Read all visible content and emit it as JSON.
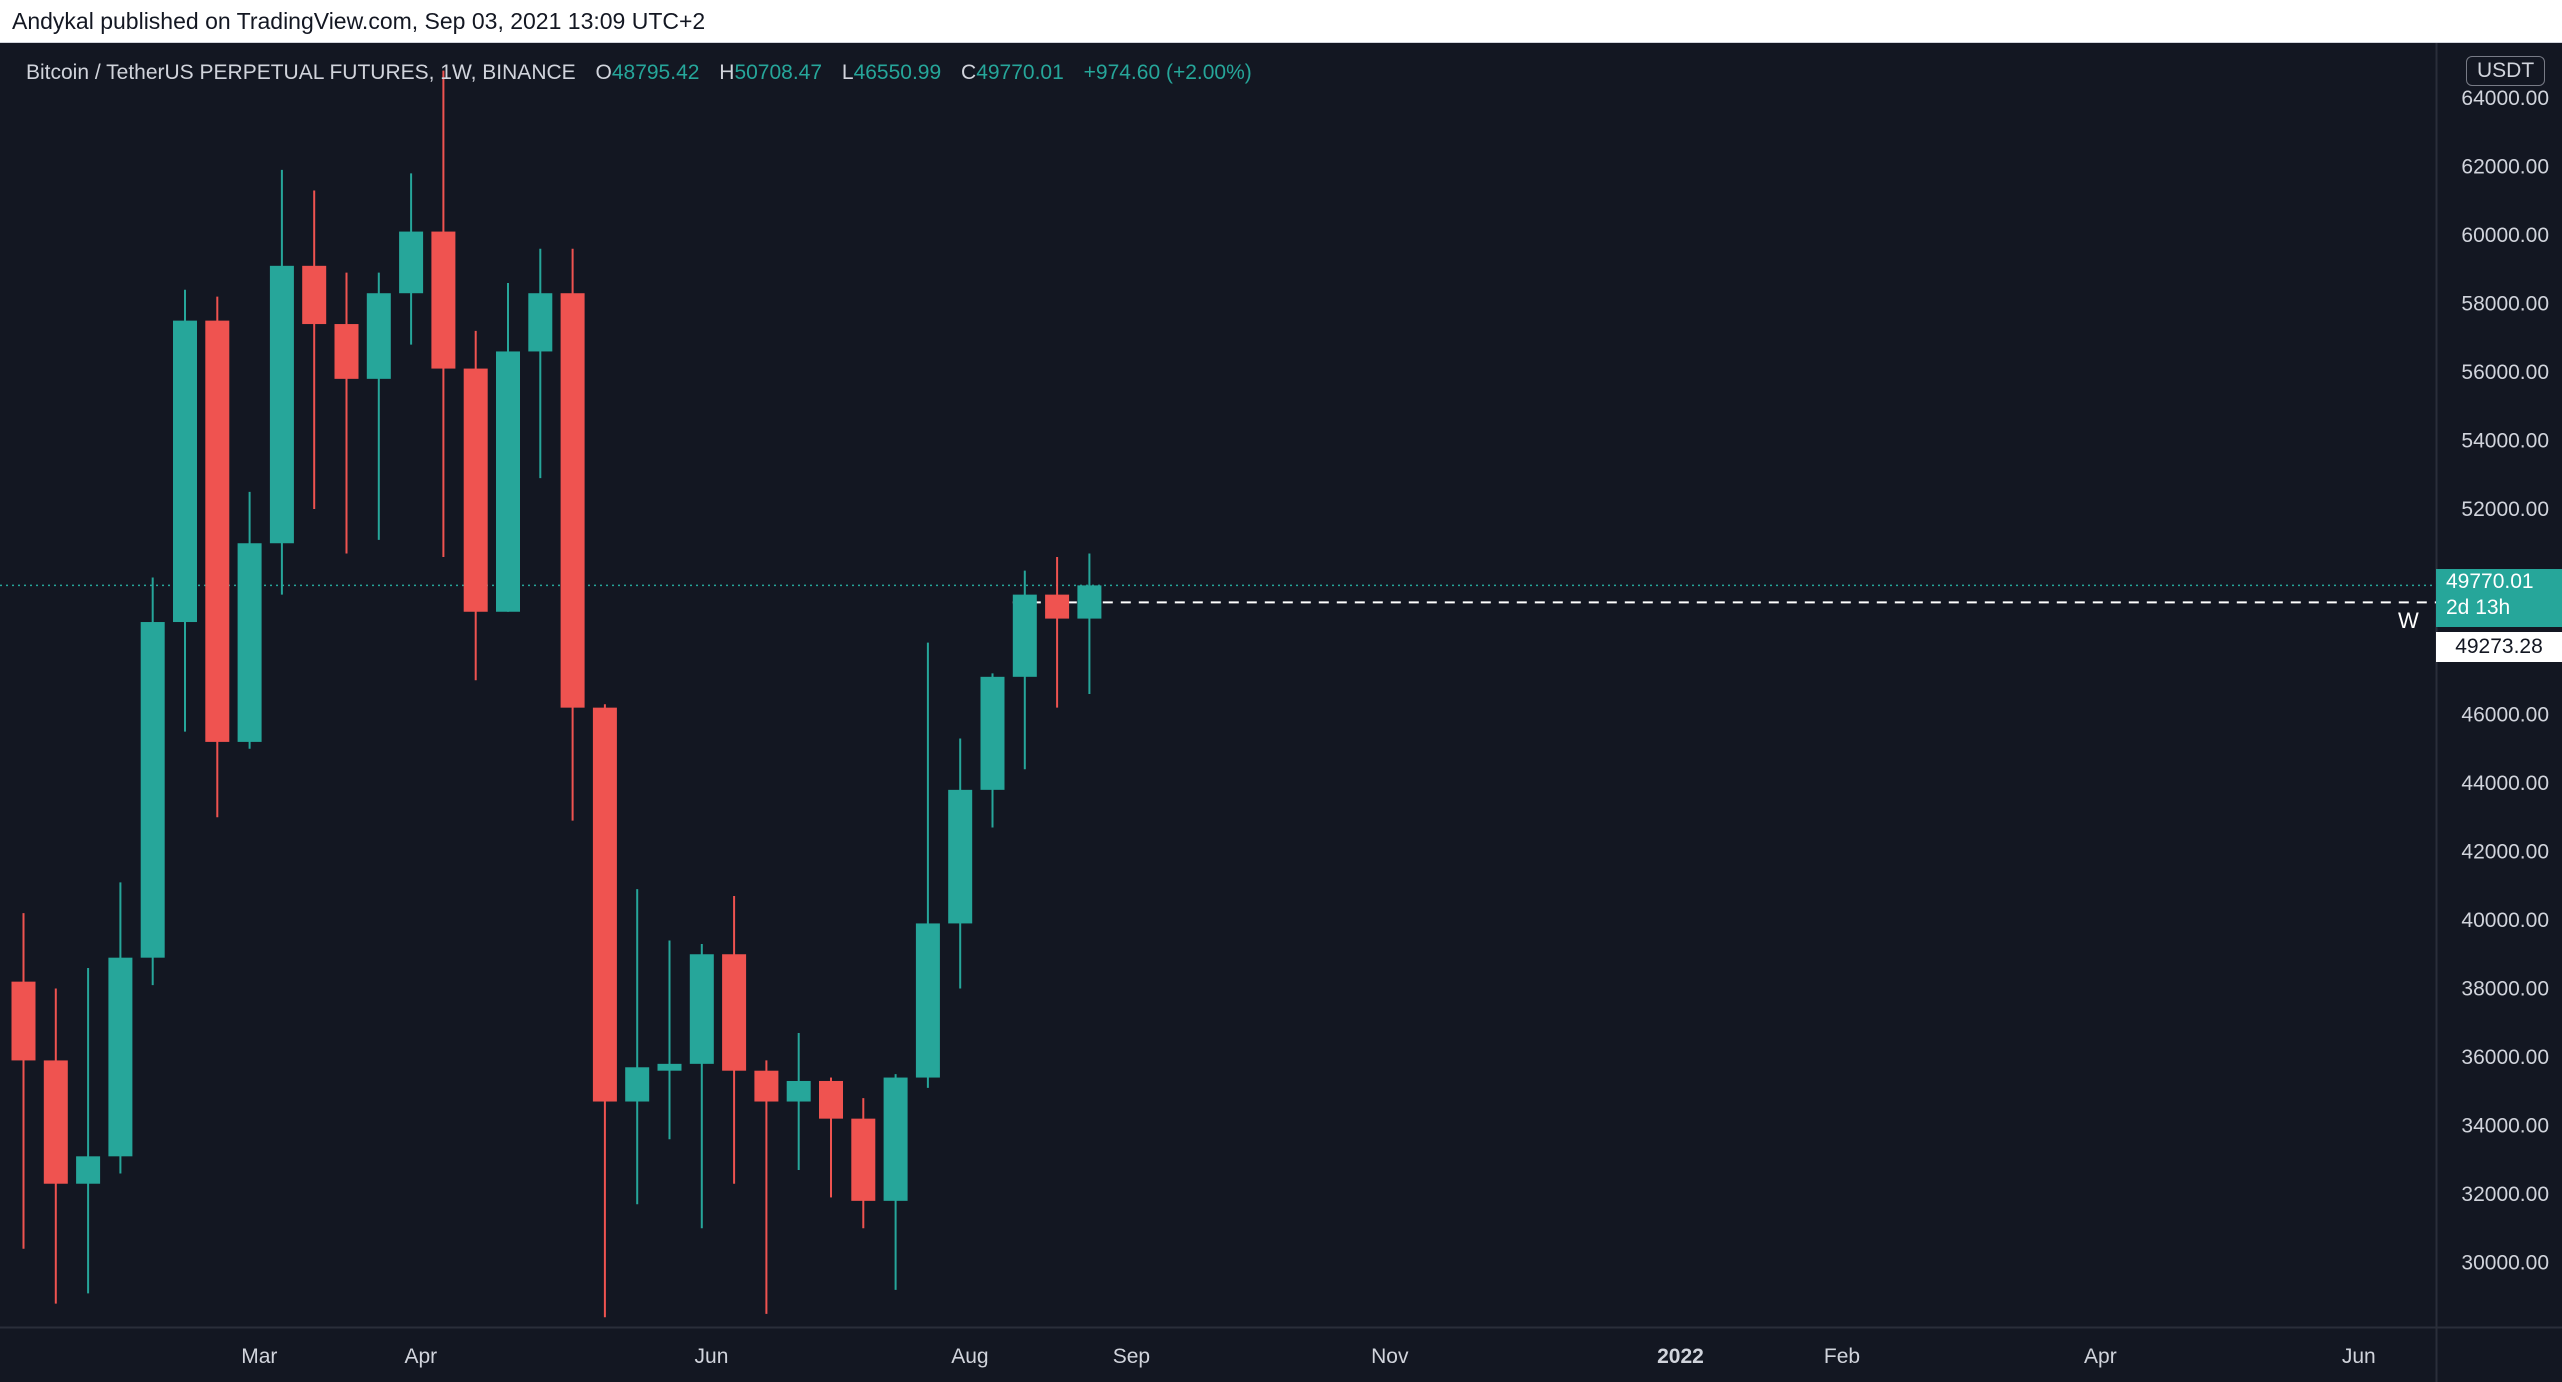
{
  "header": {
    "publish_text": "Andykal published on TradingView.com, Sep 03, 2021 13:09 UTC+2"
  },
  "legend": {
    "symbol": "Bitcoin / TetherUS PERPETUAL FUTURES, 1W, BINANCE",
    "o_label": "O",
    "o_value": "48795.42",
    "h_label": "H",
    "h_value": "50708.47",
    "l_label": "L",
    "l_value": "46550.99",
    "c_label": "C",
    "c_value": "49770.01",
    "change": "+974.60 (+2.00%)"
  },
  "currency": "USDT",
  "last_price": {
    "value": "49770.01",
    "countdown": "2d 13h"
  },
  "horizontal_line": {
    "value": "49273.28",
    "label": "W"
  },
  "colors": {
    "background": "#131722",
    "up": "#26a69a",
    "down": "#ef5350",
    "axis_text": "#d1d4dc",
    "grid_border": "#2a2e39"
  },
  "chart_data": {
    "type": "candlestick",
    "title": "Bitcoin / TetherUS PERPETUAL FUTURES, 1W, BINANCE",
    "ylim": [
      28000,
      64800
    ],
    "y_ticks": [
      "30000.00",
      "32000.00",
      "34000.00",
      "36000.00",
      "38000.00",
      "40000.00",
      "42000.00",
      "44000.00",
      "46000.00",
      "49273.28",
      "49770.01",
      "52000.00",
      "54000.00",
      "56000.00",
      "58000.00",
      "60000.00",
      "62000.00",
      "64000.00"
    ],
    "y_tick_values": [
      30000,
      32000,
      34000,
      36000,
      38000,
      40000,
      42000,
      44000,
      46000,
      52000,
      54000,
      56000,
      58000,
      60000,
      62000,
      64000
    ],
    "y_tick_labels": [
      "30000.00",
      "32000.00",
      "34000.00",
      "36000.00",
      "38000.00",
      "40000.00",
      "42000.00",
      "44000.00",
      "46000.00",
      "52000.00",
      "54000.00",
      "56000.00",
      "58000.00",
      "60000.00",
      "62000.00",
      "64000.00"
    ],
    "x_ticks": [
      {
        "label": "Mar",
        "week": 7.3
      },
      {
        "label": "Apr",
        "week": 12.3
      },
      {
        "label": "Jun",
        "week": 21.3
      },
      {
        "label": "Aug",
        "week": 29.3
      },
      {
        "label": "Sep",
        "week": 34.3
      },
      {
        "label": "Nov",
        "week": 42.3
      },
      {
        "label": "2022",
        "week": 51.3,
        "bold": true
      },
      {
        "label": "Feb",
        "week": 56.3
      },
      {
        "label": "Apr",
        "week": 64.3
      },
      {
        "label": "Jun",
        "week": 72.3
      }
    ],
    "candles": [
      {
        "o": 38200,
        "h": 40200,
        "l": 30400,
        "c": 35900
      },
      {
        "o": 35900,
        "h": 38000,
        "l": 28800,
        "c": 32300
      },
      {
        "o": 32300,
        "h": 38600,
        "l": 29100,
        "c": 33100
      },
      {
        "o": 33100,
        "h": 41100,
        "l": 32600,
        "c": 38900
      },
      {
        "o": 38900,
        "h": 50000,
        "l": 38100,
        "c": 48700
      },
      {
        "o": 48700,
        "h": 58400,
        "l": 45500,
        "c": 57500
      },
      {
        "o": 57500,
        "h": 58200,
        "l": 43000,
        "c": 45200
      },
      {
        "o": 45200,
        "h": 52500,
        "l": 45000,
        "c": 51000
      },
      {
        "o": 51000,
        "h": 61900,
        "l": 49500,
        "c": 59100
      },
      {
        "o": 59100,
        "h": 61300,
        "l": 52000,
        "c": 57400
      },
      {
        "o": 57400,
        "h": 58900,
        "l": 50700,
        "c": 55800
      },
      {
        "o": 55800,
        "h": 58900,
        "l": 51100,
        "c": 58300
      },
      {
        "o": 58300,
        "h": 61800,
        "l": 56800,
        "c": 60100
      },
      {
        "o": 60100,
        "h": 64800,
        "l": 50600,
        "c": 56100
      },
      {
        "o": 56100,
        "h": 57200,
        "l": 47000,
        "c": 49000
      },
      {
        "o": 49000,
        "h": 58600,
        "l": 49000,
        "c": 56600
      },
      {
        "o": 56600,
        "h": 59600,
        "l": 52900,
        "c": 58300
      },
      {
        "o": 58300,
        "h": 59600,
        "l": 42900,
        "c": 46200
      },
      {
        "o": 46200,
        "h": 46300,
        "l": 28400,
        "c": 34700
      },
      {
        "o": 34700,
        "h": 40900,
        "l": 31700,
        "c": 35700
      },
      {
        "o": 35600,
        "h": 39400,
        "l": 33600,
        "c": 35800
      },
      {
        "o": 35800,
        "h": 39300,
        "l": 31000,
        "c": 39000
      },
      {
        "o": 39000,
        "h": 40700,
        "l": 32300,
        "c": 35600
      },
      {
        "o": 35600,
        "h": 35900,
        "l": 28500,
        "c": 34700
      },
      {
        "o": 34700,
        "h": 36700,
        "l": 32700,
        "c": 35300
      },
      {
        "o": 35300,
        "h": 35400,
        "l": 31900,
        "c": 34200
      },
      {
        "o": 34200,
        "h": 34800,
        "l": 31000,
        "c": 31800
      },
      {
        "o": 31800,
        "h": 35500,
        "l": 29200,
        "c": 35400
      },
      {
        "o": 35400,
        "h": 48100,
        "l": 35100,
        "c": 39900
      },
      {
        "o": 39900,
        "h": 45300,
        "l": 38000,
        "c": 43800
      },
      {
        "o": 43800,
        "h": 47200,
        "l": 42700,
        "c": 47100
      },
      {
        "o": 47100,
        "h": 50200,
        "l": 44400,
        "c": 49500
      },
      {
        "o": 49500,
        "h": 50600,
        "l": 46200,
        "c": 48800
      },
      {
        "o": 48800,
        "h": 50700,
        "l": 46600,
        "c": 49770
      }
    ]
  }
}
